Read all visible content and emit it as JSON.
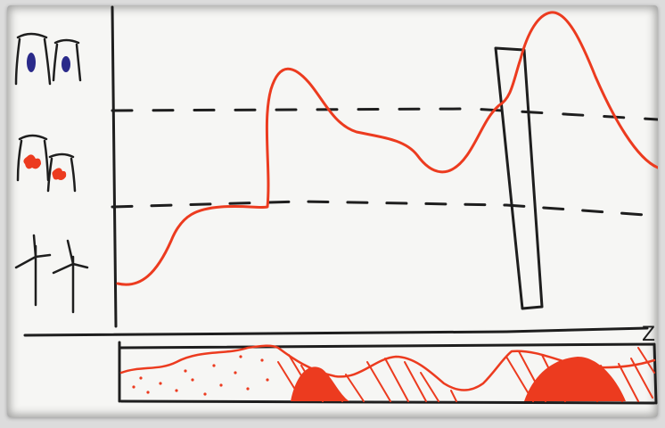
{
  "sketch": {
    "axis_end_label": "Z",
    "legend": [
      {
        "icon": "nuclear-plant-icon",
        "color": "#2a2a8a"
      },
      {
        "icon": "coal-plant-icon",
        "color": "#ec3b1f"
      },
      {
        "icon": "wind-turbine-icon",
        "color": "#1e1e1e"
      }
    ],
    "colors": {
      "curve": "#ec3b1f",
      "ink": "#1e1e1e",
      "paper": "#f6f6f4"
    }
  }
}
